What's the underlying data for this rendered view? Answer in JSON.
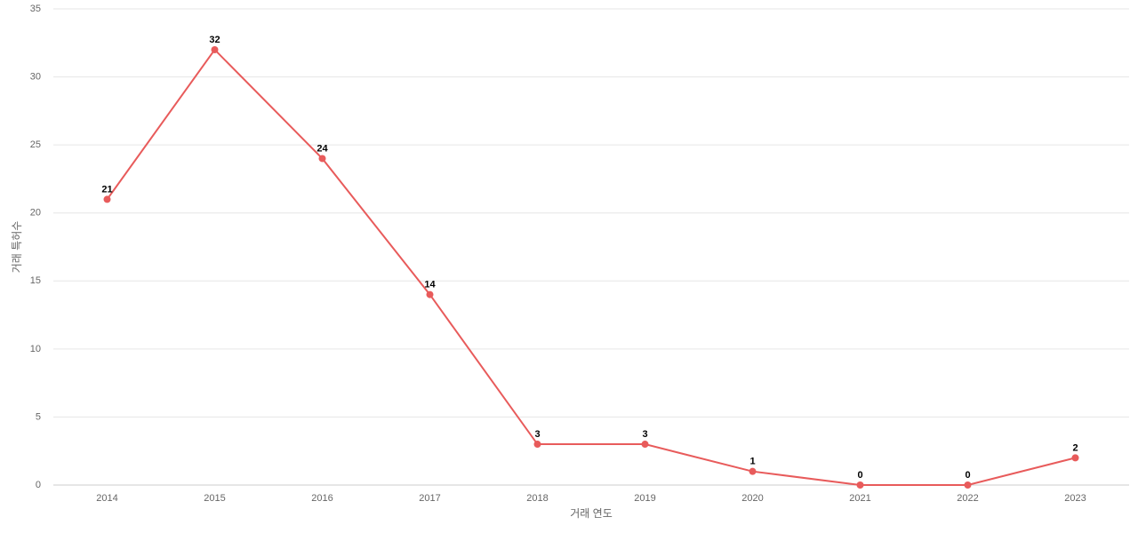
{
  "chart_data": {
    "type": "line",
    "x_label": "거래 연도",
    "y_label": "거래 특허수",
    "categories": [
      "2014",
      "2015",
      "2016",
      "2017",
      "2018",
      "2019",
      "2020",
      "2021",
      "2022",
      "2023"
    ],
    "series": [
      {
        "name": "거래 특허수",
        "color": "#e85b5b",
        "values": [
          21,
          32,
          24,
          14,
          3,
          3,
          1,
          0,
          0,
          2
        ]
      }
    ],
    "ylim": [
      0,
      35
    ],
    "yticks": [
      0,
      5,
      10,
      15,
      20,
      25,
      30,
      35
    ],
    "grid": true
  }
}
